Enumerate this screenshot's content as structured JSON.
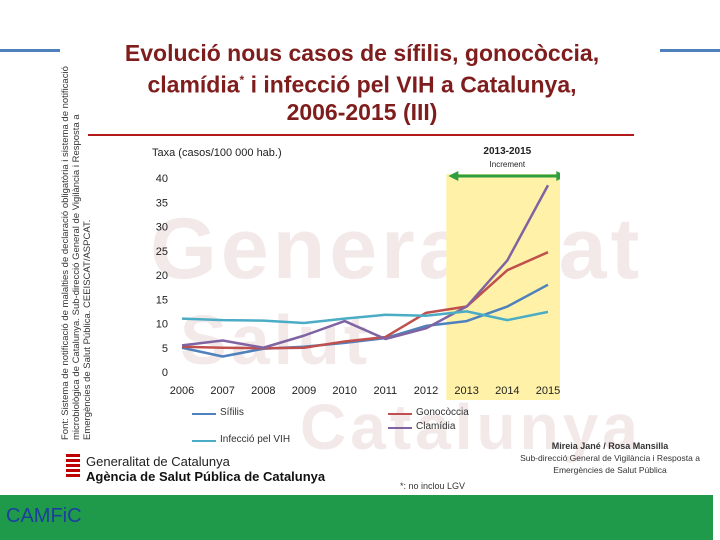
{
  "title": {
    "line1": "Evolució nous casos de sífilis, gonocòccia,",
    "line2a": "clamídia",
    "line2_asterisk": "*",
    "line2b": " i infecció pel VIH a Catalunya,",
    "line3": "2006-2015 (III)"
  },
  "source_note": "Font: Sistema de notificació de malalties de declaració obligatòria i sistema de notificació microbiològica de Catalunya. Sub-direcció General de Vigilància i Resposta a Emergències de Salut Pública. CEEISCAT/ASPCAT.",
  "chart_data": {
    "type": "line",
    "ylabel": "Taxa (casos/100 000 hab.)",
    "xlabel": "",
    "x": [
      "2006",
      "2007",
      "2008",
      "2009",
      "2010",
      "2011",
      "2012",
      "2013",
      "2014",
      "2015"
    ],
    "ylim": [
      0,
      40
    ],
    "yticks": [
      0,
      5,
      10,
      15,
      20,
      25,
      30,
      35,
      40
    ],
    "grid": false,
    "legend_position": "bottom",
    "series": [
      {
        "name": "Sífilis",
        "color": "#4f81bd",
        "values": [
          5.0,
          3.2,
          4.8,
          5.2,
          6.0,
          7.0,
          9.5,
          10.5,
          13.5,
          18.0
        ]
      },
      {
        "name": "Gonocòccia",
        "color": "#c0504d",
        "values": [
          5.2,
          5.0,
          4.9,
          5.0,
          6.3,
          7.2,
          12.2,
          13.5,
          21.0,
          24.7
        ]
      },
      {
        "name": "Clamídia",
        "color": "#8064a2",
        "values": [
          5.5,
          6.5,
          5.0,
          7.5,
          10.5,
          6.8,
          9.0,
          13.5,
          23.0,
          38.5
        ]
      },
      {
        "name": "Infecció pel VIH",
        "color": "#4bacc6",
        "values": [
          11.0,
          10.7,
          10.6,
          10.1,
          11.0,
          11.8,
          11.6,
          12.5,
          10.7,
          12.4
        ]
      }
    ],
    "highlight": {
      "label": "2013-2015",
      "sublabel": "Increment",
      "from": "2013",
      "to": "2015",
      "fill_color": "#fff2a8",
      "arrow_color": "#2e9e3e"
    }
  },
  "branding": {
    "org_line1": "Generalitat de Catalunya",
    "org_line2": "Agència de Salut Pública de Catalunya",
    "authors": "Mireia Jané / Rosa Mansilla",
    "department_line1": "Sub-direcció General de Vigilància i Resposta a",
    "department_line2": "Emergències de Salut Pública",
    "footnote": "*: no inclou LGV",
    "footer_label": "CAMFiC",
    "footer_color": "#1f9a4b"
  }
}
